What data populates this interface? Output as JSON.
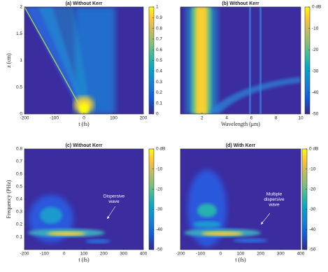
{
  "chart_data": [
    {
      "type": "heatmap",
      "title": "(a) Without Kerr",
      "xlabel": "t (fs)",
      "ylabel": "z (cm)",
      "xlim": [
        -200,
        200
      ],
      "xticks": [
        -200,
        -100,
        0,
        100,
        200
      ],
      "ylim": [
        0,
        2
      ],
      "yticks": [
        0,
        0.5,
        1,
        1.5,
        2
      ],
      "colorbar": {
        "lim": [
          0,
          1
        ],
        "ticks": [
          0,
          0.1,
          0.2,
          0.3,
          0.4,
          0.5,
          0.6,
          0.7,
          0.8,
          0.9,
          1
        ]
      }
    },
    {
      "type": "heatmap",
      "title": "(b) Without Kerr",
      "xlabel": "Wavelength (μm)",
      "xlim": [
        0.25,
        10
      ],
      "xticks": [
        2,
        4,
        6,
        8,
        10
      ],
      "ylim": [
        0,
        2
      ],
      "colorbar": {
        "lim": [
          -50,
          0
        ],
        "ticks": [
          {
            "value": 0,
            "label": "0 dB"
          },
          -10,
          -20,
          -30,
          -40,
          -50
        ]
      }
    },
    {
      "type": "heatmap",
      "title": "(c) Without Kerr",
      "xlabel": "t (fs)",
      "ylabel": "Frequency (PHz)",
      "xlim": [
        -200,
        400
      ],
      "xticks": [
        -200,
        -100,
        0,
        100,
        200,
        300,
        400
      ],
      "ylim": [
        0,
        0.8
      ],
      "yticks": [
        0.1,
        0.2,
        0.3,
        0.4,
        0.5,
        0.6,
        0.7,
        0.8
      ],
      "colorbar": {
        "lim": [
          -50,
          0
        ],
        "ticks": [
          {
            "value": 0,
            "label": "0 dB"
          },
          -10,
          -20,
          -30,
          -40,
          -50
        ]
      },
      "annotation": [
        "Dispersive",
        "wave"
      ]
    },
    {
      "type": "heatmap",
      "title": "(d) With Kerr",
      "xlabel": "t (fs)",
      "xlim": [
        -200,
        400
      ],
      "xticks": [
        -200,
        -100,
        0,
        100,
        200,
        300,
        400
      ],
      "ylim": [
        0,
        0.8
      ],
      "colorbar": {
        "lim": [
          -50,
          0
        ],
        "ticks": [
          {
            "value": 0,
            "label": "0 dB"
          },
          -10,
          -20,
          -30,
          -40,
          -50
        ]
      },
      "annotation": [
        "Multiple",
        "dispersive",
        "wave"
      ]
    }
  ]
}
